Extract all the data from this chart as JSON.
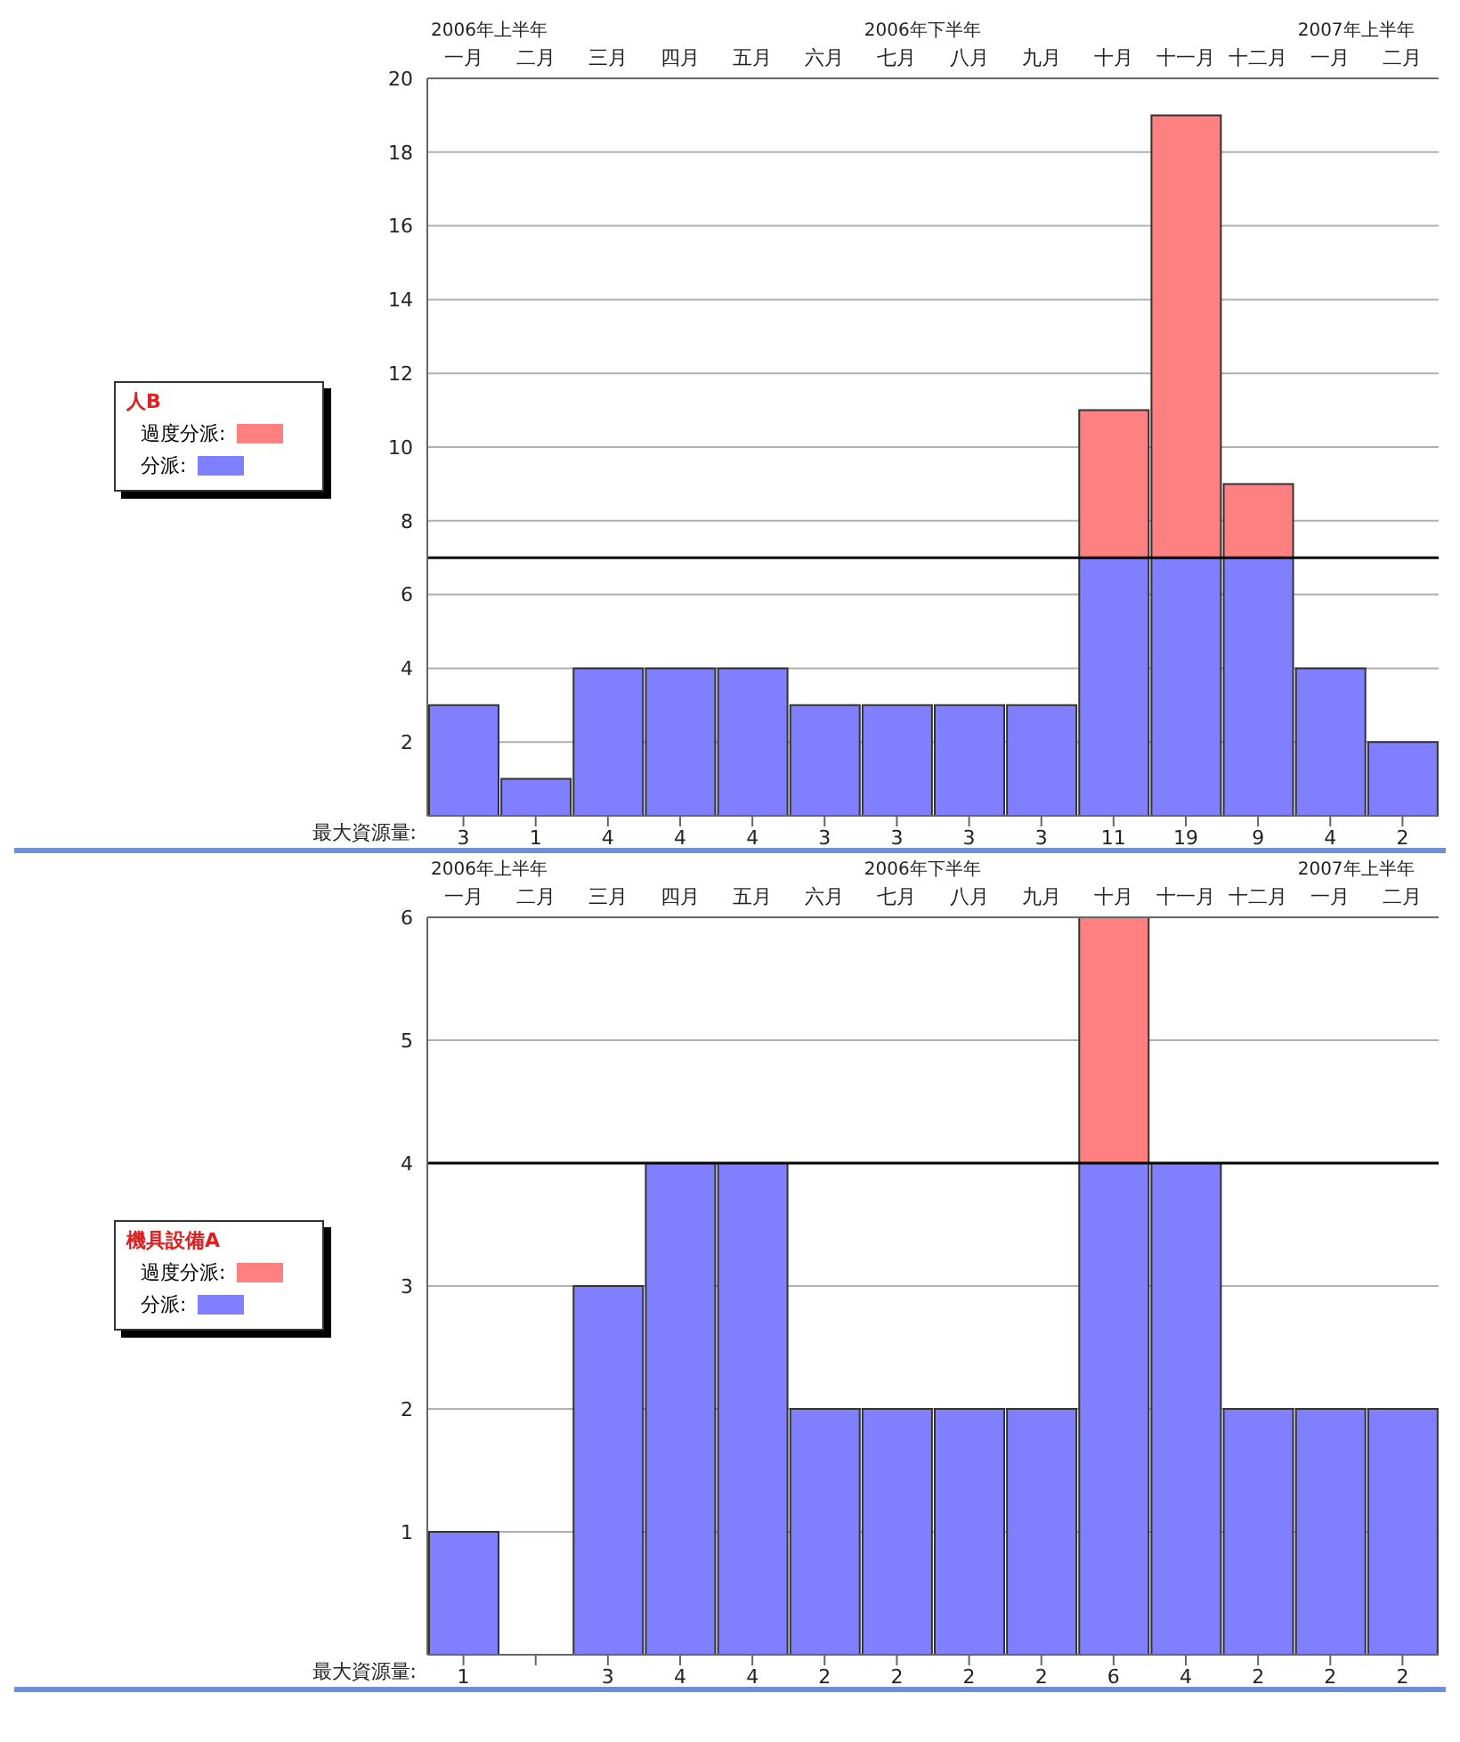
{
  "chart_data": [
    {
      "type": "bar",
      "stacked": true,
      "legend_title": "人B",
      "legend": "left",
      "grid": "y",
      "categories": [
        "一月",
        "二月",
        "三月",
        "四月",
        "五月",
        "六月",
        "七月",
        "八月",
        "九月",
        "十月",
        "十一月",
        "十二月",
        "一月",
        "二月"
      ],
      "series": [
        {
          "name": "分派:",
          "color": "#8080ff",
          "values": [
            3,
            1,
            4,
            4,
            4,
            3,
            3,
            3,
            3,
            7,
            7,
            7,
            4,
            2
          ]
        },
        {
          "name": "過度分派:",
          "color": "#ff8080",
          "values": [
            0,
            0,
            0,
            0,
            0,
            0,
            0,
            0,
            0,
            4,
            12,
            2,
            0,
            0
          ]
        }
      ],
      "ylim": [
        0,
        20
      ],
      "yticks": [
        2,
        4,
        6,
        8,
        10,
        12,
        14,
        16,
        18,
        20
      ],
      "ref_lines": [
        {
          "axis": "y",
          "value": 7,
          "color": "#000000"
        }
      ],
      "totals": [
        "3",
        "1",
        "4",
        "4",
        "4",
        "3",
        "3",
        "3",
        "3",
        "11",
        "19",
        "9",
        "4",
        "2"
      ],
      "annotations": [
        "2006年上半年",
        "2006年下半年",
        "2007年上半年",
        "最大資源量:"
      ]
    },
    {
      "type": "bar",
      "stacked": true,
      "legend_title": "機具設備A",
      "legend": "left",
      "grid": "y",
      "categories": [
        "一月",
        "二月",
        "三月",
        "四月",
        "五月",
        "六月",
        "七月",
        "八月",
        "九月",
        "十月",
        "十一月",
        "十二月",
        "一月",
        "二月"
      ],
      "series": [
        {
          "name": "分派:",
          "color": "#8080ff",
          "values": [
            1,
            0,
            3,
            4,
            4,
            2,
            2,
            2,
            2,
            4,
            4,
            2,
            2,
            2
          ]
        },
        {
          "name": "過度分派:",
          "color": "#ff8080",
          "values": [
            0,
            0,
            0,
            0,
            0,
            0,
            0,
            0,
            0,
            2,
            0,
            0,
            0,
            0
          ]
        }
      ],
      "ylim": [
        0,
        6
      ],
      "yticks": [
        1,
        2,
        3,
        4,
        5,
        6
      ],
      "ref_lines": [
        {
          "axis": "y",
          "value": 4,
          "color": "#000000"
        }
      ],
      "totals": [
        "1",
        null,
        "3",
        "4",
        "4",
        "2",
        "2",
        "2",
        "2",
        "6",
        "4",
        "2",
        "2",
        "2"
      ],
      "annotations": [
        "2006年上半年",
        "2006年下半年",
        "2007年上半年",
        "最大資源量:"
      ]
    }
  ]
}
